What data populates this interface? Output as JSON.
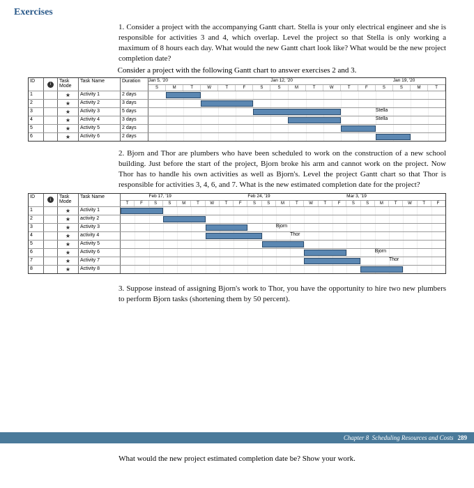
{
  "heading": "Exercises",
  "q1": {
    "num": "1.",
    "text": "Consider a project with the accompanying Gantt chart. Stella is your only electrical engineer and she is responsible for activities 3 and 4, which overlap. Level the project so that Stella is only working a maximum of 8 hours each day. What would the new Gantt chart look like? What would be the new project completion date?",
    "instr": "Consider a project with the following Gantt chart to answer exercises 2 and 3."
  },
  "q2": {
    "num": "2.",
    "text": "Bjorn and Thor are plumbers who have been scheduled to work on the construction of a new school building. Just before the start of the project, Bjorn broke his arm and cannot work on the project. Now Thor has to handle his own activities as well as Bjorn's. Level the project Gantt chart so that Thor is responsible for activities 3, 4, 6, and 7. What is the new estimated completion date for the project?"
  },
  "q3": {
    "num": "3.",
    "text": "Suppose instead of assigning Bjorn's work to Thor, you have the opportunity to hire two new plumbers to perform Bjorn tasks (shortening them by 50 percent)."
  },
  "gantt1": {
    "headers": {
      "id": "ID",
      "mode": "Task Mode",
      "name": "Task Name",
      "dur": "Duration"
    },
    "dates": [
      "Jan 5, '20",
      "Jan 12, '20",
      "Jan 19, '20"
    ],
    "days": [
      "S",
      "M",
      "T",
      "W",
      "T",
      "F",
      "S",
      "S",
      "M",
      "T",
      "W",
      "T",
      "F",
      "S",
      "S",
      "M",
      "T"
    ],
    "n_days": 17,
    "rows": [
      {
        "id": "1",
        "name": "Activity 1",
        "dur": "2 days",
        "start": 1,
        "len": 2,
        "color": "#5b87b2"
      },
      {
        "id": "2",
        "name": "Activity 2",
        "dur": "3 days",
        "start": 3,
        "len": 3,
        "color": "#5b87b2"
      },
      {
        "id": "3",
        "name": "Activity 3",
        "dur": "5 days",
        "start": 6,
        "len": 5,
        "color": "#5b87b2",
        "label": "Stella",
        "label_off": 2
      },
      {
        "id": "4",
        "name": "Activity 4",
        "dur": "3 days",
        "start": 8,
        "len": 3,
        "color": "#5b87b2",
        "label": "Stella",
        "label_off": 2
      },
      {
        "id": "5",
        "name": "Activity 5",
        "dur": "2 days",
        "start": 11,
        "len": 2,
        "color": "#5b87b2"
      },
      {
        "id": "6",
        "name": "Activity 6",
        "dur": "2 days",
        "start": 13,
        "len": 2,
        "color": "#5b87b2"
      }
    ]
  },
  "gantt2": {
    "headers": {
      "id": "ID",
      "mode": "Task Mode",
      "name": "Task Name"
    },
    "dates": [
      "Feb 17, '19",
      "Feb 24, '19",
      "Mar 3, '19"
    ],
    "days": [
      "T",
      "F",
      "S",
      "S",
      "M",
      "T",
      "W",
      "T",
      "F",
      "S",
      "S",
      "M",
      "T",
      "W",
      "T",
      "F",
      "S",
      "S",
      "M",
      "T",
      "W",
      "T",
      "F"
    ],
    "n_days": 23,
    "rows": [
      {
        "id": "1",
        "name": "Activity 1",
        "start": 0,
        "len": 3,
        "color": "#5b87b2"
      },
      {
        "id": "2",
        "name": "activity 2",
        "start": 3,
        "len": 3,
        "color": "#5b87b2"
      },
      {
        "id": "3",
        "name": "Activity 3",
        "start": 6,
        "len": 3,
        "color": "#5b87b2",
        "label": "Bjorn",
        "label_off": 2
      },
      {
        "id": "4",
        "name": "activity 4",
        "start": 6,
        "len": 4,
        "color": "#5b87b2",
        "label": "Thor",
        "label_off": 2
      },
      {
        "id": "5",
        "name": "Activity 5",
        "start": 10,
        "len": 3,
        "color": "#5b87b2"
      },
      {
        "id": "6",
        "name": "Activity 6",
        "start": 13,
        "len": 3,
        "color": "#5b87b2",
        "label": "Bjorn",
        "label_off": 2
      },
      {
        "id": "7",
        "name": "Activity 7",
        "start": 13,
        "len": 4,
        "color": "#5b87b2",
        "label": "Thor",
        "label_off": 2
      },
      {
        "id": "8",
        "name": "Activity 8",
        "start": 17,
        "len": 3,
        "color": "#5b87b2"
      }
    ]
  },
  "footer": {
    "chapter": "Chapter 8",
    "title": "Scheduling Resources and Costs",
    "page": "289"
  },
  "bottom_q": "What would the new project estimated completion date be? Show your work."
}
